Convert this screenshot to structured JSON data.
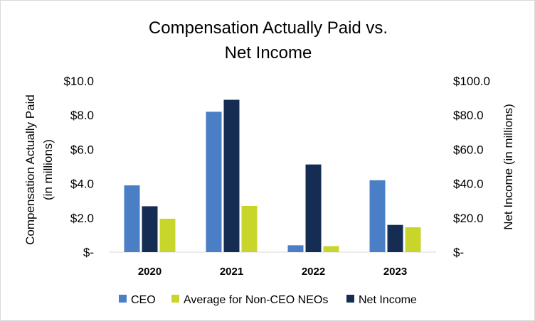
{
  "chart_data": {
    "type": "bar",
    "title_lines": [
      "Compensation Actually Paid vs.",
      "Net Income"
    ],
    "categories": [
      "2020",
      "2021",
      "2022",
      "2023"
    ],
    "series": [
      {
        "name": "CEO",
        "axis": "left",
        "color": "#4a7fc5",
        "values": [
          3.9,
          8.2,
          0.4,
          4.2
        ]
      },
      {
        "name": "Net Income",
        "axis": "right",
        "color": "#152d52",
        "values": [
          26.8,
          89.0,
          51.2,
          15.9
        ]
      },
      {
        "name": "Average for Non-CEO NEOs",
        "axis": "left",
        "color": "#c8d62b",
        "values": [
          1.95,
          2.7,
          0.35,
          1.45
        ]
      }
    ],
    "legend_order": [
      "CEO",
      "Average for Non-CEO NEOs",
      "Net Income"
    ],
    "legend_placement": "bottom",
    "ylabel_left_lines": [
      "Compensation Actually Paid",
      "(in millions)"
    ],
    "ylabel_right": "Net Income (in millions)",
    "ylim_left": [
      0,
      10
    ],
    "ylim_right": [
      0,
      100
    ],
    "yticks_left": [
      "$-",
      "$2.0",
      "$4.0",
      "$6.0",
      "$8.0",
      "$10.0"
    ],
    "yticks_right": [
      "$-",
      "$20.0",
      "$40.0",
      "$60.0",
      "$80.0",
      "$100.0"
    ],
    "grid": false
  }
}
